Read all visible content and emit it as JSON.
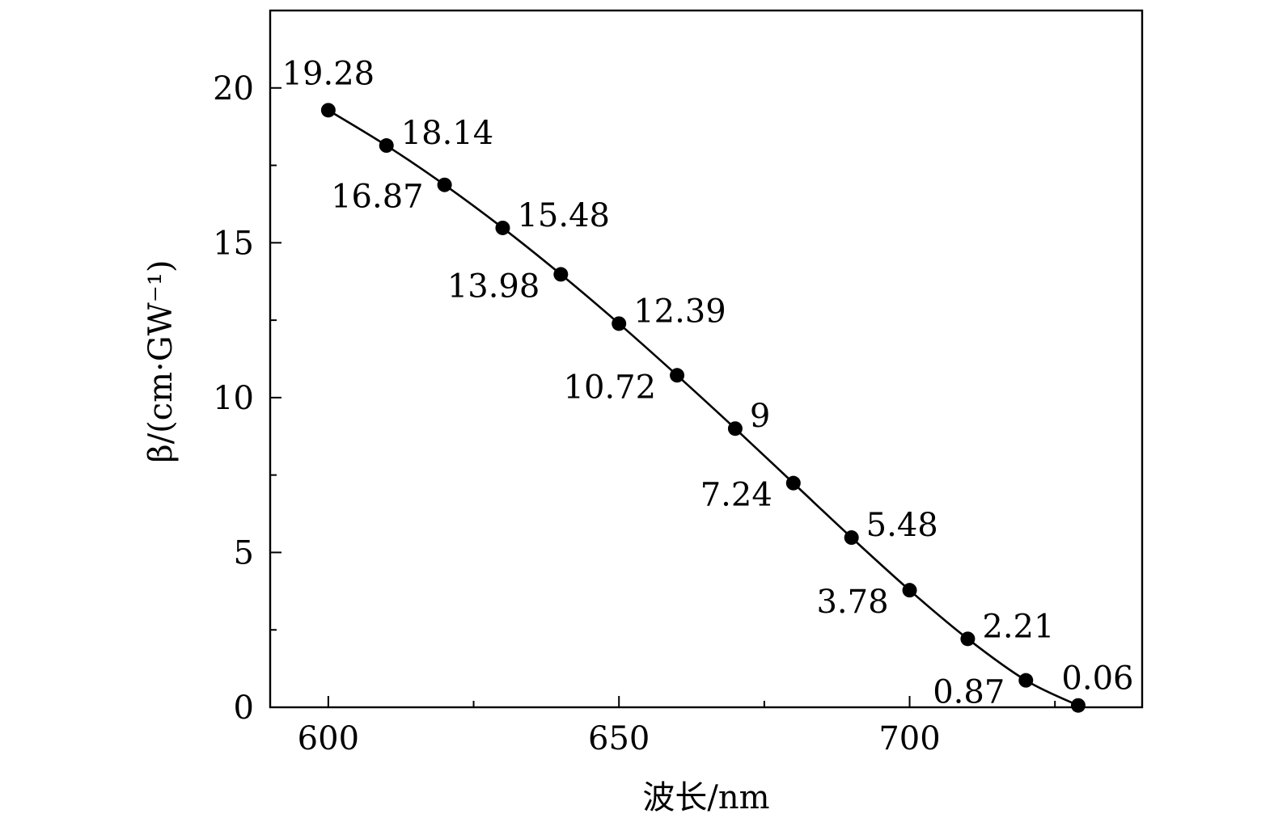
{
  "chart_data": {
    "type": "line",
    "title": "",
    "xlabel": "波长/nm",
    "ylabel": "β/(cm·GW⁻¹)",
    "xlim": [
      590,
      740
    ],
    "ylim": [
      0,
      22.5
    ],
    "xticks": [
      600,
      650,
      700
    ],
    "yticks": [
      0,
      5,
      10,
      15,
      20
    ],
    "grid": false,
    "legend": "none",
    "series": [
      {
        "name": "β",
        "color": "#000000",
        "x": [
          600,
          610,
          620,
          630,
          640,
          650,
          660,
          670,
          680,
          690,
          700,
          710,
          720,
          729
        ],
        "values": [
          19.28,
          18.14,
          16.87,
          15.48,
          13.98,
          12.39,
          10.72,
          9,
          7.24,
          5.48,
          3.78,
          2.21,
          0.87,
          0.06
        ],
        "labels": [
          "19.28",
          "18.14",
          "16.87",
          "15.48",
          "13.98",
          "12.39",
          "10.72",
          "9",
          "7.24",
          "5.48",
          "3.78",
          "2.21",
          "0.87",
          "0.06"
        ]
      }
    ]
  }
}
